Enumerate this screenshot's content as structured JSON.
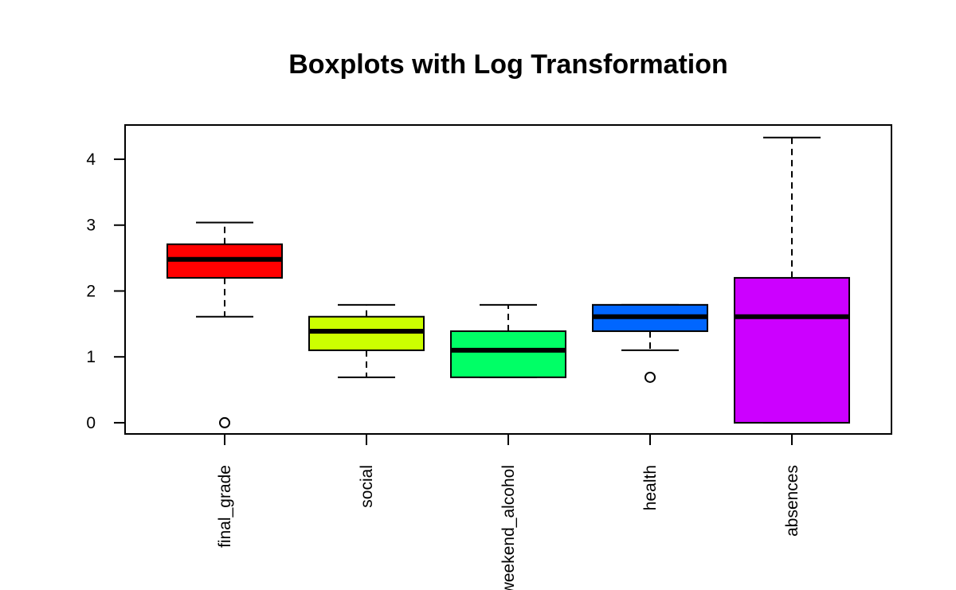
{
  "chart_data": {
    "type": "boxplot",
    "title": "Boxplots with Log Transformation",
    "xlabel": "",
    "ylabel": "",
    "ylim": [
      -0.17,
      4.52
    ],
    "y_ticks": [
      0,
      1,
      2,
      3,
      4
    ],
    "categories": [
      "final_grade",
      "social",
      "weekend_alcohol",
      "health",
      "absences"
    ],
    "boxes": [
      {
        "category": "final_grade",
        "lower_whisker": 1.61,
        "q1": 2.2,
        "median": 2.48,
        "q3": 2.71,
        "upper_whisker": 3.04,
        "outliers": [
          0
        ],
        "color": "#FF0000"
      },
      {
        "category": "social",
        "lower_whisker": 0.69,
        "q1": 1.1,
        "median": 1.39,
        "q3": 1.61,
        "upper_whisker": 1.79,
        "outliers": [],
        "color": "#CCFF00"
      },
      {
        "category": "weekend_alcohol",
        "lower_whisker": 0.69,
        "q1": 0.69,
        "median": 1.1,
        "q3": 1.39,
        "upper_whisker": 1.79,
        "outliers": [],
        "color": "#00FF66"
      },
      {
        "category": "health",
        "lower_whisker": 1.1,
        "q1": 1.39,
        "median": 1.61,
        "q3": 1.79,
        "upper_whisker": 1.79,
        "outliers": [
          0.69
        ],
        "color": "#0066FF"
      },
      {
        "category": "absences",
        "lower_whisker": 0,
        "q1": 0,
        "median": 1.61,
        "q3": 2.2,
        "upper_whisker": 4.33,
        "outliers": [],
        "color": "#CC00FF"
      }
    ]
  }
}
